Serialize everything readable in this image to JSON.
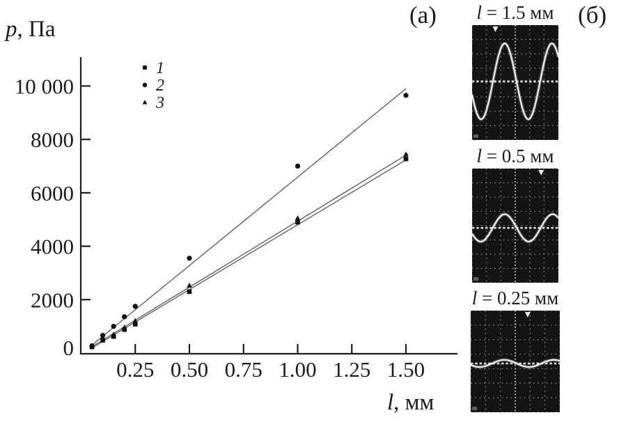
{
  "panel_a": {
    "label": "(а)",
    "y_axis_title": {
      "var": "p",
      "rest": ", Па"
    },
    "x_axis_title": {
      "var": "l",
      "rest": ", мм"
    },
    "legend": [
      {
        "marker": "square",
        "label": "1"
      },
      {
        "marker": "circle",
        "label": "2"
      },
      {
        "marker": "triangle",
        "label": "3"
      }
    ]
  },
  "chart_data": {
    "type": "scatter",
    "title": "",
    "xlabel": "l, мм",
    "ylabel": "p, Па",
    "xlim": [
      0,
      1.74
    ],
    "ylim": [
      0,
      11000
    ],
    "grid": false,
    "legend_position": "upper-left-inside",
    "xticks": [
      0.25,
      0.5,
      0.75,
      1.0,
      1.25,
      1.5
    ],
    "xtick_labels": [
      "0.25",
      "0.50",
      "0.75",
      "1.00",
      "1.25",
      "1.50"
    ],
    "yticks": [
      0,
      2000,
      4000,
      6000,
      8000,
      10000
    ],
    "ytick_labels": [
      "0",
      "2000",
      "4000",
      "6000",
      "8000",
      "10 000"
    ],
    "x": [
      0.05,
      0.1,
      0.15,
      0.2,
      0.25,
      0.5,
      1.0,
      1.5
    ],
    "series": [
      {
        "name": "1",
        "marker": "square",
        "values": [
          230,
          480,
          620,
          880,
          1080,
          2300,
          4900,
          7270
        ],
        "fit_line": {
          "x": [
            0.05,
            1.51
          ],
          "y": [
            190,
            7280
          ]
        }
      },
      {
        "name": "2",
        "marker": "circle",
        "values": [
          270,
          660,
          1000,
          1360,
          1750,
          3550,
          7000,
          9650
        ],
        "fit_line": {
          "x": [
            0.04,
            1.5
          ],
          "y": [
            230,
            9900
          ]
        }
      },
      {
        "name": "3",
        "marker": "triangle",
        "values": [
          260,
          580,
          700,
          960,
          1210,
          2530,
          5050,
          7440
        ],
        "fit_line": {
          "x": [
            0.05,
            1.51
          ],
          "y": [
            240,
            7460
          ]
        }
      }
    ]
  },
  "panel_b": {
    "label": "(б)",
    "scopes": [
      {
        "title_var": "l",
        "title_rest": " = 1.5 мм",
        "waveform": {
          "midline": 0.49,
          "amplitude": 0.33,
          "periods_visible": 1.83,
          "trough_phase": 0.105
        },
        "trigger_pos": 0.27,
        "grid": {
          "cols": 6,
          "rows": 8
        }
      },
      {
        "title_var": "l",
        "title_rest": " = 0.5 мм",
        "waveform": {
          "midline": 0.52,
          "amplitude": 0.12,
          "periods_visible": 1.8,
          "trough_phase": 0.1
        },
        "trigger_pos": 0.8,
        "grid": {
          "cols": 6,
          "rows": 8
        }
      },
      {
        "title_var": "l",
        "title_rest": " = 0.25 мм",
        "waveform": {
          "midline": 0.52,
          "amplitude": 0.035,
          "periods_visible": 1.8,
          "trough_phase": 0.1
        },
        "trigger_pos": 0.64,
        "grid": {
          "cols": 6,
          "rows": 7
        }
      }
    ]
  },
  "colors": {
    "ink": "#1c1c1c",
    "fit_line": "#5a5a5a",
    "marker": "#111111",
    "scope_bg": "#141414",
    "scope_grid": "#8f8f8f",
    "scope_grid_bright": "#d8d8d8",
    "scope_wave": "#ececec"
  }
}
